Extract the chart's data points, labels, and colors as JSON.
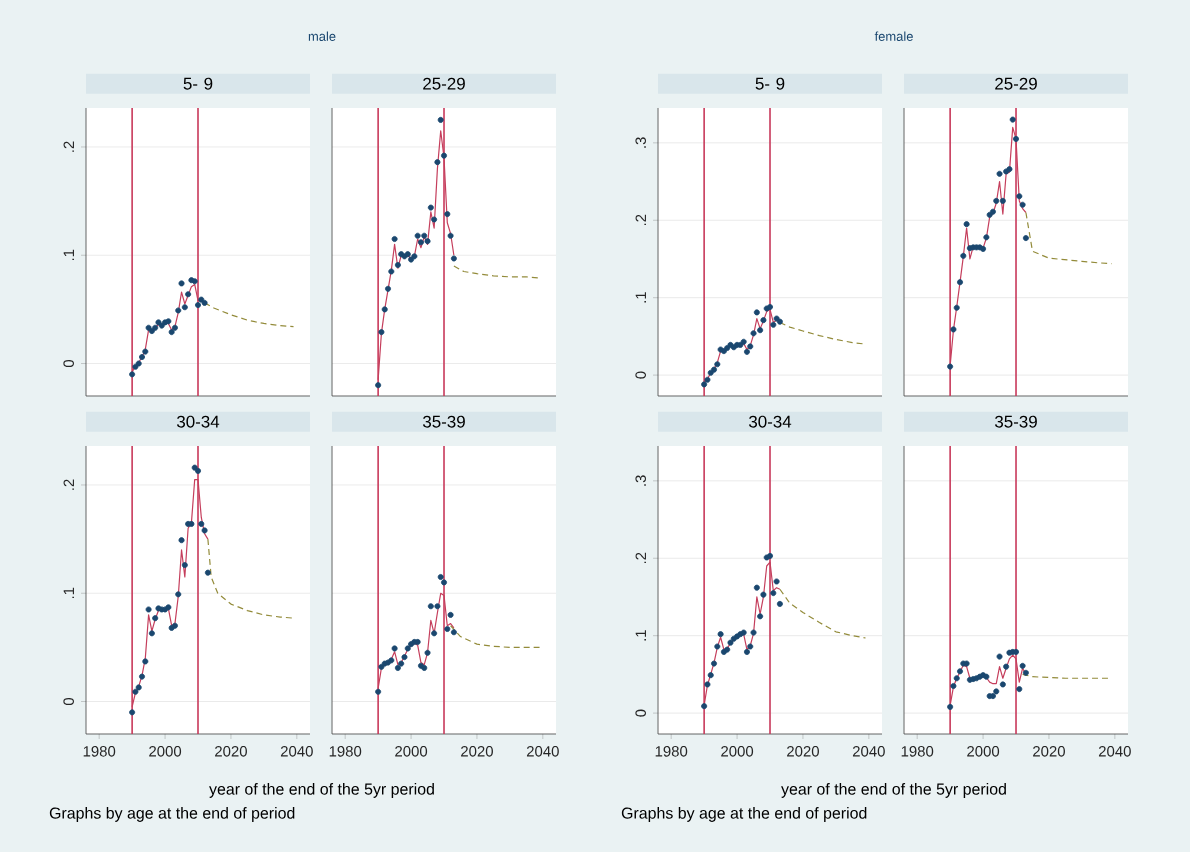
{
  "chart_data": [
    {
      "type": "scatter",
      "title": "5- 9",
      "subtitle": "male",
      "xlim": [
        1976,
        2044
      ],
      "ylim": [
        -0.03,
        0.236
      ],
      "xticks": [
        1980,
        2000,
        2020,
        2040
      ],
      "yticks": [
        0,
        {
          "value": 0.1,
          "label": ".1"
        },
        {
          "value": 0.2,
          "label": ".2"
        }
      ],
      "tick_labels": "y",
      "grid": "y",
      "ref_lines": [
        {
          "axis": "x",
          "value": 1990,
          "color": "#c8385a"
        },
        {
          "axis": "x",
          "value": 2010,
          "color": "#c8385a"
        }
      ],
      "series": [
        {
          "type": "scatter",
          "marker": "circle",
          "color": "#1a476f",
          "x": [
            1990,
            1991,
            1992,
            1993,
            1994,
            1995,
            1996,
            1997,
            1998,
            1999,
            2000,
            2001,
            2002,
            2003,
            2004,
            2005,
            2006,
            2007,
            2008,
            2009,
            2010,
            2011,
            2012
          ],
          "values": [
            -0.01,
            -0.003,
            0.0,
            0.006,
            0.011,
            0.033,
            0.03,
            0.033,
            0.038,
            0.035,
            0.038,
            0.039,
            0.029,
            0.033,
            0.049,
            0.074,
            0.052,
            0.064,
            0.077,
            0.076,
            0.054,
            0.059,
            0.056
          ]
        },
        {
          "type": "line",
          "color": "#c53e5c",
          "x": [
            1990,
            1991,
            1992,
            1993,
            1994,
            1995,
            1996,
            1997,
            1998,
            1999,
            2000,
            2001,
            2002,
            2003,
            2004,
            2005,
            2006,
            2007,
            2008,
            2009,
            2010,
            2011,
            2012
          ],
          "values": [
            -0.008,
            -0.002,
            0.001,
            0.006,
            0.013,
            0.031,
            0.031,
            0.033,
            0.036,
            0.036,
            0.038,
            0.037,
            0.031,
            0.034,
            0.047,
            0.066,
            0.055,
            0.063,
            0.071,
            0.073,
            0.058,
            0.058,
            0.056
          ]
        },
        {
          "type": "line",
          "line_style": "dashed",
          "color": "#938b3a",
          "x": [
            2012,
            2015,
            2020,
            2025,
            2030,
            2035,
            2039
          ],
          "values": [
            0.056,
            0.051,
            0.045,
            0.04,
            0.037,
            0.035,
            0.034
          ]
        }
      ]
    },
    {
      "type": "scatter",
      "title": "25-29",
      "xlim": [
        1976,
        2044
      ],
      "ylim": [
        -0.03,
        0.236
      ],
      "xticks": [
        1980,
        2000,
        2020,
        2040
      ],
      "yticks": [
        0,
        {
          "value": 0.1,
          "label": null
        },
        {
          "value": 0.2,
          "label": null
        }
      ],
      "tick_labels": false,
      "grid": "y",
      "ref_lines": [
        {
          "axis": "x",
          "value": 1990,
          "color": "#c8385a"
        },
        {
          "axis": "x",
          "value": 2010,
          "color": "#c8385a"
        }
      ],
      "series": [
        {
          "type": "scatter",
          "marker": "circle",
          "color": "#1a476f",
          "x": [
            1990,
            1991,
            1992,
            1993,
            1994,
            1995,
            1996,
            1997,
            1998,
            1999,
            2000,
            2001,
            2002,
            2003,
            2004,
            2005,
            2006,
            2007,
            2008,
            2009,
            2010,
            2011,
            2012,
            2013
          ],
          "values": [
            -0.02,
            0.029,
            0.05,
            0.069,
            0.085,
            0.115,
            0.091,
            0.101,
            0.099,
            0.101,
            0.096,
            0.099,
            0.118,
            0.112,
            0.118,
            0.113,
            0.144,
            0.133,
            0.186,
            0.225,
            0.192,
            0.138,
            0.118,
            0.097
          ]
        },
        {
          "type": "line",
          "color": "#c53e5c",
          "x": [
            1990,
            1991,
            1992,
            1993,
            1994,
            1995,
            1996,
            1997,
            1998,
            1999,
            2000,
            2001,
            2002,
            2003,
            2004,
            2005,
            2006,
            2007,
            2008,
            2009,
            2010,
            2011,
            2012,
            2013
          ],
          "values": [
            -0.015,
            0.028,
            0.05,
            0.068,
            0.086,
            0.11,
            0.088,
            0.1,
            0.098,
            0.1,
            0.097,
            0.099,
            0.115,
            0.107,
            0.117,
            0.11,
            0.14,
            0.125,
            0.18,
            0.215,
            0.19,
            0.13,
            0.12,
            0.1
          ]
        },
        {
          "type": "line",
          "line_style": "dashed",
          "color": "#938b3a",
          "x": [
            2013,
            2016,
            2020,
            2025,
            2030,
            2035,
            2039
          ],
          "values": [
            0.09,
            0.085,
            0.083,
            0.081,
            0.08,
            0.08,
            0.079
          ]
        }
      ]
    },
    {
      "type": "scatter",
      "title": "30-34",
      "xlabel": "year of the end of the 5yr period",
      "annotations": [
        "Graphs by age at the end of period"
      ],
      "xlim": [
        1976,
        2044
      ],
      "ylim": [
        -0.03,
        0.236
      ],
      "xticks": [
        1980,
        2000,
        2020,
        2040
      ],
      "yticks": [
        0,
        {
          "value": 0.1,
          "label": ".1"
        },
        {
          "value": 0.2,
          "label": ".2"
        }
      ],
      "grid": "y",
      "ref_lines": [
        {
          "axis": "x",
          "value": 1990,
          "color": "#c8385a"
        },
        {
          "axis": "x",
          "value": 2010,
          "color": "#c8385a"
        }
      ],
      "series": [
        {
          "type": "scatter",
          "marker": "circle",
          "color": "#1a476f",
          "x": [
            1990,
            1991,
            1992,
            1993,
            1994,
            1995,
            1996,
            1997,
            1998,
            1999,
            2000,
            2001,
            2002,
            2003,
            2004,
            2005,
            2006,
            2007,
            2008,
            2009,
            2010,
            2011,
            2012,
            2013
          ],
          "values": [
            -0.01,
            0.009,
            0.013,
            0.023,
            0.037,
            0.085,
            0.063,
            0.077,
            0.086,
            0.085,
            0.085,
            0.087,
            0.068,
            0.07,
            0.099,
            0.149,
            0.126,
            0.164,
            0.164,
            0.216,
            0.213,
            0.164,
            0.158,
            0.119
          ]
        },
        {
          "type": "line",
          "color": "#c53e5c",
          "x": [
            1990,
            1991,
            1992,
            1993,
            1994,
            1995,
            1996,
            1997,
            1998,
            1999,
            2000,
            2001,
            2002,
            2003,
            2004,
            2005,
            2006,
            2007,
            2008,
            2009,
            2010,
            2011,
            2012,
            2013
          ],
          "values": [
            -0.005,
            0.008,
            0.014,
            0.024,
            0.04,
            0.08,
            0.065,
            0.076,
            0.084,
            0.085,
            0.084,
            0.086,
            0.07,
            0.072,
            0.097,
            0.14,
            0.115,
            0.16,
            0.165,
            0.205,
            0.205,
            0.17,
            0.155,
            0.15
          ]
        },
        {
          "type": "line",
          "line_style": "dashed",
          "color": "#938b3a",
          "x": [
            2013,
            2014,
            2016,
            2020,
            2025,
            2030,
            2035,
            2039
          ],
          "values": [
            0.15,
            0.115,
            0.1,
            0.09,
            0.084,
            0.08,
            0.078,
            0.077
          ]
        }
      ]
    },
    {
      "type": "scatter",
      "title": "35-39",
      "xlim": [
        1976,
        2044
      ],
      "ylim": [
        -0.03,
        0.236
      ],
      "xticks": [
        1980,
        2000,
        2020,
        2040
      ],
      "yticks": [
        0,
        {
          "value": 0.1,
          "label": null
        },
        {
          "value": 0.2,
          "label": null
        }
      ],
      "tick_labels": "x",
      "grid": "y",
      "ref_lines": [
        {
          "axis": "x",
          "value": 1990,
          "color": "#c8385a"
        },
        {
          "axis": "x",
          "value": 2010,
          "color": "#c8385a"
        }
      ],
      "series": [
        {
          "type": "scatter",
          "marker": "circle",
          "color": "#1a476f",
          "x": [
            1990,
            1991,
            1992,
            1993,
            1994,
            1995,
            1996,
            1997,
            1998,
            1999,
            2000,
            2001,
            2002,
            2003,
            2004,
            2005,
            2006,
            2007,
            2008,
            2009,
            2010,
            2011,
            2012,
            2013
          ],
          "values": [
            0.009,
            0.032,
            0.035,
            0.036,
            0.038,
            0.049,
            0.031,
            0.035,
            0.041,
            0.049,
            0.053,
            0.055,
            0.055,
            0.033,
            0.031,
            0.045,
            0.088,
            0.063,
            0.088,
            0.115,
            0.11,
            0.067,
            0.08,
            0.064
          ]
        },
        {
          "type": "line",
          "color": "#c53e5c",
          "x": [
            1990,
            1991,
            1992,
            1993,
            1994,
            1995,
            1996,
            1997,
            1998,
            1999,
            2000,
            2001,
            2002,
            2003,
            2004,
            2005,
            2006,
            2007,
            2008,
            2009,
            2010,
            2011,
            2012,
            2013
          ],
          "values": [
            0.012,
            0.031,
            0.035,
            0.037,
            0.039,
            0.046,
            0.034,
            0.036,
            0.042,
            0.048,
            0.052,
            0.054,
            0.052,
            0.036,
            0.034,
            0.045,
            0.075,
            0.063,
            0.082,
            0.1,
            0.098,
            0.07,
            0.072,
            0.068
          ]
        },
        {
          "type": "line",
          "line_style": "dashed",
          "color": "#938b3a",
          "x": [
            2012,
            2015,
            2020,
            2025,
            2030,
            2035,
            2039
          ],
          "values": [
            0.07,
            0.06,
            0.053,
            0.051,
            0.05,
            0.05,
            0.05
          ]
        }
      ]
    },
    {
      "type": "scatter",
      "title": "5- 9",
      "subtitle": "female",
      "xlim": [
        1976,
        2044
      ],
      "ylim": [
        -0.027,
        0.345
      ],
      "xticks": [
        1980,
        2000,
        2020,
        2040
      ],
      "yticks": [
        0,
        {
          "value": 0.1,
          "label": ".1"
        },
        {
          "value": 0.2,
          "label": ".2"
        },
        {
          "value": 0.3,
          "label": ".3"
        }
      ],
      "tick_labels": "y",
      "grid": "y",
      "ref_lines": [
        {
          "axis": "x",
          "value": 1990,
          "color": "#c8385a"
        },
        {
          "axis": "x",
          "value": 2010,
          "color": "#c8385a"
        }
      ],
      "series": [
        {
          "type": "scatter",
          "marker": "circle",
          "color": "#1a476f",
          "x": [
            1990,
            1991,
            1992,
            1993,
            1994,
            1995,
            1996,
            1997,
            1998,
            1999,
            2000,
            2001,
            2002,
            2003,
            2004,
            2005,
            2006,
            2007,
            2008,
            2009,
            2010,
            2011,
            2012,
            2013
          ],
          "values": [
            -0.012,
            -0.006,
            0.003,
            0.007,
            0.014,
            0.033,
            0.031,
            0.035,
            0.039,
            0.036,
            0.039,
            0.039,
            0.043,
            0.03,
            0.037,
            0.054,
            0.081,
            0.058,
            0.071,
            0.086,
            0.088,
            0.065,
            0.073,
            0.069
          ]
        },
        {
          "type": "line",
          "color": "#c53e5c",
          "x": [
            1990,
            1991,
            1992,
            1993,
            1994,
            1995,
            1996,
            1997,
            1998,
            1999,
            2000,
            2001,
            2002,
            2003,
            2004,
            2005,
            2006,
            2007,
            2008,
            2009,
            2010,
            2011,
            2012,
            2013
          ],
          "values": [
            -0.01,
            -0.005,
            0.003,
            0.008,
            0.016,
            0.031,
            0.032,
            0.035,
            0.038,
            0.037,
            0.039,
            0.039,
            0.041,
            0.033,
            0.038,
            0.052,
            0.073,
            0.06,
            0.07,
            0.082,
            0.085,
            0.068,
            0.071,
            0.069
          ]
        },
        {
          "type": "line",
          "line_style": "dashed",
          "color": "#938b3a",
          "x": [
            2013,
            2016,
            2020,
            2025,
            2030,
            2035,
            2039
          ],
          "values": [
            0.068,
            0.062,
            0.057,
            0.051,
            0.046,
            0.042,
            0.04
          ]
        }
      ]
    },
    {
      "type": "scatter",
      "title": "25-29",
      "xlim": [
        1976,
        2044
      ],
      "ylim": [
        -0.027,
        0.345
      ],
      "xticks": [
        1980,
        2000,
        2020,
        2040
      ],
      "yticks": [
        0,
        {
          "value": 0.1,
          "label": null
        },
        {
          "value": 0.2,
          "label": null
        },
        {
          "value": 0.3,
          "label": null
        }
      ],
      "tick_labels": false,
      "grid": "y",
      "ref_lines": [
        {
          "axis": "x",
          "value": 1990,
          "color": "#c8385a"
        },
        {
          "axis": "x",
          "value": 2010,
          "color": "#c8385a"
        }
      ],
      "series": [
        {
          "type": "scatter",
          "marker": "circle",
          "color": "#1a476f",
          "x": [
            1990,
            1991,
            1992,
            1993,
            1994,
            1995,
            1996,
            1997,
            1998,
            1999,
            2000,
            2001,
            2002,
            2003,
            2004,
            2005,
            2006,
            2007,
            2008,
            2009,
            2010,
            2011,
            2012,
            2013
          ],
          "values": [
            0.011,
            0.059,
            0.087,
            0.12,
            0.154,
            0.195,
            0.164,
            0.165,
            0.165,
            0.165,
            0.163,
            0.178,
            0.207,
            0.211,
            0.225,
            0.26,
            0.225,
            0.263,
            0.266,
            0.33,
            0.305,
            0.231,
            0.22,
            0.177
          ]
        },
        {
          "type": "line",
          "color": "#c53e5c",
          "x": [
            1990,
            1991,
            1992,
            1993,
            1994,
            1995,
            1996,
            1997,
            1998,
            1999,
            2000,
            2001,
            2002,
            2003,
            2004,
            2005,
            2006,
            2007,
            2008,
            2009,
            2010,
            2011,
            2012,
            2013
          ],
          "values": [
            0.012,
            0.058,
            0.088,
            0.12,
            0.153,
            0.19,
            0.15,
            0.166,
            0.165,
            0.165,
            0.164,
            0.177,
            0.204,
            0.209,
            0.222,
            0.25,
            0.208,
            0.26,
            0.262,
            0.32,
            0.305,
            0.225,
            0.215,
            0.21
          ]
        },
        {
          "type": "line",
          "line_style": "dashed",
          "color": "#938b3a",
          "x": [
            2013,
            2015,
            2020,
            2025,
            2030,
            2035,
            2039
          ],
          "values": [
            0.21,
            0.16,
            0.151,
            0.149,
            0.147,
            0.145,
            0.144
          ]
        }
      ]
    },
    {
      "type": "scatter",
      "title": "30-34",
      "xlabel": "year of the end of the 5yr period",
      "annotations": [
        "Graphs by age at the end of period"
      ],
      "xlim": [
        1976,
        2044
      ],
      "ylim": [
        -0.027,
        0.345
      ],
      "xticks": [
        1980,
        2000,
        2020,
        2040
      ],
      "yticks": [
        0,
        {
          "value": 0.1,
          "label": ".1"
        },
        {
          "value": 0.2,
          "label": ".2"
        },
        {
          "value": 0.3,
          "label": ".3"
        }
      ],
      "grid": "y",
      "ref_lines": [
        {
          "axis": "x",
          "value": 1990,
          "color": "#c8385a"
        },
        {
          "axis": "x",
          "value": 2010,
          "color": "#c8385a"
        }
      ],
      "series": [
        {
          "type": "scatter",
          "marker": "circle",
          "color": "#1a476f",
          "x": [
            1990,
            1991,
            1992,
            1993,
            1994,
            1995,
            1996,
            1997,
            1998,
            1999,
            2000,
            2001,
            2002,
            2003,
            2004,
            2005,
            2006,
            2007,
            2008,
            2009,
            2010,
            2011,
            2012,
            2013
          ],
          "values": [
            0.009,
            0.037,
            0.049,
            0.064,
            0.086,
            0.102,
            0.079,
            0.082,
            0.091,
            0.096,
            0.099,
            0.102,
            0.104,
            0.079,
            0.086,
            0.104,
            0.162,
            0.125,
            0.153,
            0.201,
            0.203,
            0.155,
            0.17,
            0.141
          ]
        },
        {
          "type": "line",
          "color": "#c53e5c",
          "x": [
            1990,
            1991,
            1992,
            1993,
            1994,
            1995,
            1996,
            1997,
            1998,
            1999,
            2000,
            2001,
            2002,
            2003,
            2004,
            2005,
            2006,
            2007,
            2008,
            2009,
            2010,
            2011,
            2012,
            2013
          ],
          "values": [
            0.01,
            0.036,
            0.05,
            0.065,
            0.085,
            0.098,
            0.082,
            0.084,
            0.09,
            0.095,
            0.098,
            0.101,
            0.102,
            0.082,
            0.087,
            0.103,
            0.15,
            0.128,
            0.15,
            0.19,
            0.195,
            0.158,
            0.162,
            0.16
          ]
        },
        {
          "type": "line",
          "line_style": "dashed",
          "color": "#938b3a",
          "x": [
            2013,
            2016,
            2020,
            2025,
            2030,
            2035,
            2039
          ],
          "values": [
            0.16,
            0.142,
            0.13,
            0.117,
            0.105,
            0.1,
            0.097
          ]
        }
      ]
    },
    {
      "type": "scatter",
      "title": "35-39",
      "xlim": [
        1976,
        2044
      ],
      "ylim": [
        -0.027,
        0.345
      ],
      "xticks": [
        1980,
        2000,
        2020,
        2040
      ],
      "yticks": [
        0,
        {
          "value": 0.1,
          "label": null
        },
        {
          "value": 0.2,
          "label": null
        },
        {
          "value": 0.3,
          "label": null
        }
      ],
      "tick_labels": "x",
      "grid": "y",
      "ref_lines": [
        {
          "axis": "x",
          "value": 1990,
          "color": "#c8385a"
        },
        {
          "axis": "x",
          "value": 2010,
          "color": "#c8385a"
        }
      ],
      "series": [
        {
          "type": "scatter",
          "marker": "circle",
          "color": "#1a476f",
          "x": [
            1990,
            1991,
            1992,
            1993,
            1994,
            1995,
            1996,
            1997,
            1998,
            1999,
            2000,
            2001,
            2002,
            2003,
            2004,
            2005,
            2006,
            2007,
            2008,
            2009,
            2010,
            2011,
            2012,
            2013
          ],
          "values": [
            0.008,
            0.035,
            0.045,
            0.054,
            0.064,
            0.064,
            0.043,
            0.044,
            0.045,
            0.047,
            0.049,
            0.047,
            0.022,
            0.022,
            0.028,
            0.073,
            0.037,
            0.06,
            0.078,
            0.079,
            0.079,
            0.031,
            0.061,
            0.052
          ]
        },
        {
          "type": "line",
          "color": "#c53e5c",
          "x": [
            1990,
            1991,
            1992,
            1993,
            1994,
            1995,
            1996,
            1997,
            1998,
            1999,
            2000,
            2001,
            2002,
            2003,
            2004,
            2005,
            2006,
            2007,
            2008,
            2009,
            2010,
            2011,
            2012,
            2013
          ],
          "values": [
            0.01,
            0.034,
            0.045,
            0.053,
            0.062,
            0.06,
            0.045,
            0.045,
            0.046,
            0.047,
            0.048,
            0.046,
            0.04,
            0.038,
            0.038,
            0.06,
            0.045,
            0.058,
            0.07,
            0.075,
            0.07,
            0.04,
            0.058,
            0.05
          ]
        },
        {
          "type": "line",
          "line_style": "dashed",
          "color": "#938b3a",
          "x": [
            2012,
            2015,
            2020,
            2025,
            2030,
            2035,
            2039
          ],
          "values": [
            0.05,
            0.047,
            0.046,
            0.045,
            0.045,
            0.045,
            0.045
          ]
        }
      ]
    }
  ]
}
